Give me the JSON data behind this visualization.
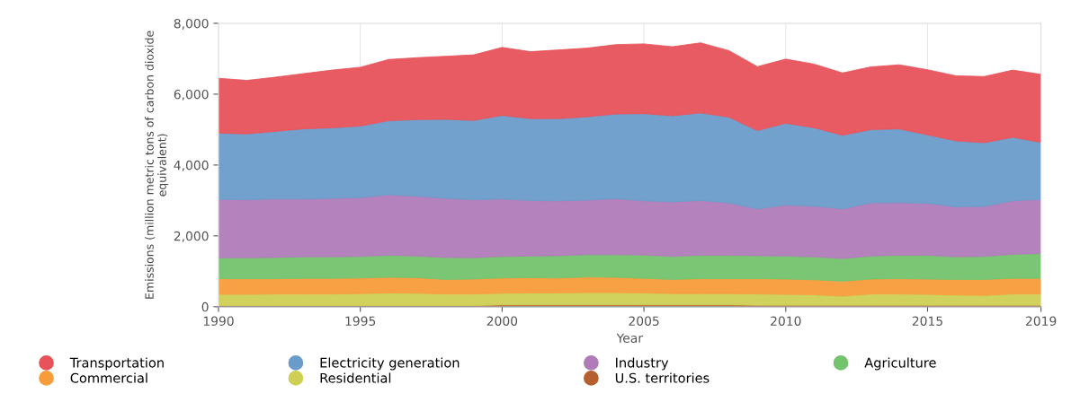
{
  "chart_data": {
    "type": "area",
    "stacked": true,
    "xlabel": "Year",
    "ylabel": "Emissions (million metric tons of carbon dioxide equivalent)",
    "x": [
      1990,
      1991,
      1992,
      1993,
      1994,
      1995,
      1996,
      1997,
      1998,
      1999,
      2000,
      2001,
      2002,
      2003,
      2004,
      2005,
      2006,
      2007,
      2008,
      2009,
      2010,
      2011,
      2012,
      2013,
      2014,
      2015,
      2016,
      2017,
      2018,
      2019
    ],
    "xlim": [
      1990,
      2019
    ],
    "xticks": [
      1990,
      1995,
      2000,
      2005,
      2010,
      2015,
      2019
    ],
    "ylim": [
      0,
      8000
    ],
    "yticks": [
      0,
      {
        "value": 2000,
        "label": "2,000"
      },
      {
        "value": 4000,
        "label": "4,000"
      },
      {
        "value": 6000,
        "label": "6,000"
      },
      {
        "value": 8000,
        "label": "8,000"
      }
    ],
    "grid": true,
    "legend": "bottom",
    "series": [
      {
        "name": "U.S. territories",
        "color": "#b5602f",
        "values": [
          30,
          30,
          30,
          30,
          30,
          30,
          30,
          30,
          30,
          30,
          50,
          50,
          50,
          50,
          50,
          50,
          50,
          50,
          50,
          40,
          40,
          40,
          40,
          40,
          40,
          40,
          40,
          40,
          40,
          40
        ]
      },
      {
        "name": "Residential",
        "color": "#cfcf55",
        "values": [
          320,
          320,
          330,
          330,
          330,
          340,
          360,
          350,
          330,
          330,
          330,
          340,
          340,
          350,
          350,
          340,
          320,
          320,
          320,
          320,
          310,
          300,
          260,
          320,
          320,
          310,
          290,
          280,
          320,
          320
        ]
      },
      {
        "name": "Commercial",
        "color": "#f89c3a",
        "values": [
          440,
          440,
          430,
          440,
          440,
          440,
          440,
          440,
          410,
          420,
          430,
          430,
          420,
          440,
          430,
          410,
          400,
          420,
          420,
          430,
          430,
          420,
          420,
          420,
          430,
          430,
          440,
          450,
          440,
          440
        ]
      },
      {
        "name": "Agriculture",
        "color": "#74c36d",
        "values": [
          590,
          590,
          600,
          610,
          610,
          610,
          620,
          610,
          620,
          600,
          610,
          610,
          630,
          630,
          640,
          660,
          650,
          660,
          660,
          650,
          650,
          650,
          640,
          650,
          660,
          670,
          640,
          650,
          680,
          700
        ]
      },
      {
        "name": "Industry",
        "color": "#b07bb8",
        "values": [
          1650,
          1640,
          1650,
          1630,
          1650,
          1660,
          1710,
          1690,
          1670,
          1640,
          1620,
          1570,
          1550,
          1540,
          1580,
          1530,
          1540,
          1550,
          1480,
          1320,
          1440,
          1430,
          1400,
          1500,
          1490,
          1470,
          1410,
          1410,
          1510,
          1530
        ]
      },
      {
        "name": "Electricity generation",
        "color": "#6a9ccb",
        "values": [
          1870,
          1860,
          1910,
          1980,
          1990,
          2020,
          2090,
          2160,
          2230,
          2240,
          2360,
          2310,
          2320,
          2350,
          2390,
          2460,
          2430,
          2470,
          2420,
          2210,
          2310,
          2210,
          2080,
          2070,
          2080,
          1930,
          1860,
          1800,
          1790,
          1610
        ]
      },
      {
        "name": "Transportation",
        "color": "#e8525a",
        "values": [
          1550,
          1510,
          1530,
          1560,
          1630,
          1660,
          1730,
          1750,
          1780,
          1850,
          1920,
          1890,
          1940,
          1940,
          1960,
          1970,
          1950,
          1980,
          1880,
          1810,
          1810,
          1800,
          1760,
          1770,
          1810,
          1840,
          1840,
          1870,
          1900,
          1920
        ]
      }
    ]
  }
}
